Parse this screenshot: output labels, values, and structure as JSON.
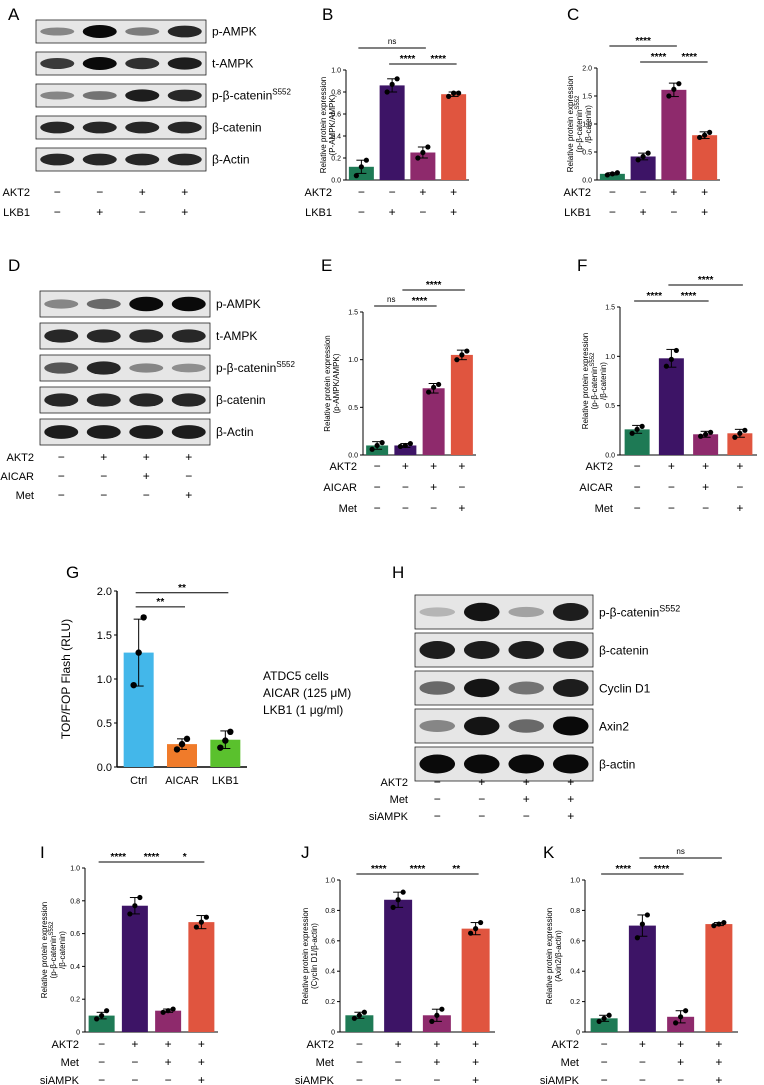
{
  "colors": {
    "green": "#1e7a55",
    "purple": "#3d1466",
    "magenta": "#8e2a6c",
    "red": "#e0553f",
    "g_blue": "#43b7ea",
    "g_orange": "#f07b2a",
    "g_green": "#5ac12d"
  },
  "panels": {
    "A": {
      "letter": "A",
      "blot_labels": [
        "p-AMPK",
        "t-AMPK",
        "p-β-catenin",
        "β-catenin",
        "β-Actin"
      ],
      "rows": [
        {
          "label": "AKT2",
          "signs": [
            "−",
            "−",
            "+",
            "+"
          ]
        },
        {
          "label": "LKB1",
          "signs": [
            "−",
            "+",
            "−",
            "+"
          ]
        }
      ]
    },
    "D": {
      "letter": "D",
      "blot_labels": [
        "p-AMPK",
        "t-AMPK",
        "p-β-catenin",
        "β-catenin",
        "β-Actin"
      ],
      "rows": [
        {
          "label": "AKT2",
          "signs": [
            "−",
            "+",
            "+",
            "+"
          ]
        },
        {
          "label": "AICAR",
          "signs": [
            "−",
            "−",
            "+",
            "−"
          ]
        },
        {
          "label": "Met",
          "signs": [
            "−",
            "−",
            "−",
            "+"
          ]
        }
      ]
    },
    "H": {
      "letter": "H",
      "blot_labels": [
        "p-β-catenin",
        "β-catenin",
        "Cyclin D1",
        "Axin2",
        "β-actin"
      ],
      "rows": [
        {
          "label": "AKT2",
          "signs": [
            "−",
            "+",
            "+",
            "+"
          ]
        },
        {
          "label": "Met",
          "signs": [
            "−",
            "−",
            "+",
            "+"
          ]
        },
        {
          "label": "siAMPK",
          "signs": [
            "−",
            "−",
            "−",
            "+"
          ]
        }
      ]
    },
    "G": {
      "letter": "G",
      "note_lines": [
        "ATDC5 cells",
        "AICAR (125 μM)",
        "LKB1 (1 μg/ml)"
      ]
    }
  },
  "superscript": "S552",
  "chart_data": [
    {
      "id": "B",
      "type": "bar",
      "letter": "B",
      "categories": [
        "1",
        "2",
        "3",
        "4"
      ],
      "values": [
        0.12,
        0.86,
        0.25,
        0.78
      ],
      "errors": [
        0.06,
        0.06,
        0.05,
        0.02
      ],
      "points": [
        [
          0.04,
          0.12,
          0.18
        ],
        [
          0.8,
          0.87,
          0.92
        ],
        [
          0.2,
          0.25,
          0.3
        ],
        [
          0.76,
          0.79,
          0.79
        ]
      ],
      "ylim": [
        0,
        1.0
      ],
      "yticks": [
        "0.0",
        "0.2",
        "0.4",
        "0.6",
        "0.8",
        "1.0"
      ],
      "ylabel_lines": [
        "Relative protein expression",
        "(P-AMPK/AMPK)"
      ],
      "rows": [
        {
          "label": "AKT2",
          "signs": [
            "−",
            "−",
            "+",
            "+"
          ]
        },
        {
          "label": "LKB1",
          "signs": [
            "−",
            "+",
            "−",
            "+"
          ]
        }
      ],
      "comparisons": [
        {
          "from": 0,
          "to": 2,
          "label": "ns"
        },
        {
          "from": 1,
          "to": 2,
          "label": "****"
        },
        {
          "from": 2,
          "to": 3,
          "label": "****"
        }
      ]
    },
    {
      "id": "C",
      "type": "bar",
      "letter": "C",
      "categories": [
        "1",
        "2",
        "3",
        "4"
      ],
      "values": [
        0.11,
        0.42,
        1.61,
        0.8
      ],
      "errors": [
        0.02,
        0.06,
        0.12,
        0.06
      ],
      "points": [
        [
          0.09,
          0.11,
          0.13
        ],
        [
          0.36,
          0.42,
          0.48
        ],
        [
          1.5,
          1.62,
          1.72
        ],
        [
          0.76,
          0.8,
          0.85
        ]
      ],
      "ylim": [
        0,
        2.0
      ],
      "yticks": [
        "0.0",
        "0.5",
        "1.0",
        "1.5",
        "2.0"
      ],
      "ylabel_lines": [
        "Relative protein expression",
        "(p-β-catenin",
        "/β-catenin)"
      ],
      "rows": [
        {
          "label": "AKT2",
          "signs": [
            "−",
            "−",
            "+",
            "+"
          ]
        },
        {
          "label": "LKB1",
          "signs": [
            "−",
            "+",
            "−",
            "+"
          ]
        }
      ],
      "comparisons": [
        {
          "from": 0,
          "to": 2,
          "label": "****"
        },
        {
          "from": 1,
          "to": 2,
          "label": "****"
        },
        {
          "from": 2,
          "to": 3,
          "label": "****"
        }
      ]
    },
    {
      "id": "E",
      "type": "bar",
      "letter": "E",
      "categories": [
        "1",
        "2",
        "3",
        "4"
      ],
      "values": [
        0.1,
        0.1,
        0.7,
        1.05
      ],
      "errors": [
        0.04,
        0.02,
        0.05,
        0.05
      ],
      "points": [
        [
          0.06,
          0.1,
          0.13
        ],
        [
          0.09,
          0.1,
          0.12
        ],
        [
          0.66,
          0.71,
          0.74
        ],
        [
          1.0,
          1.05,
          1.09
        ]
      ],
      "ylim": [
        0,
        1.5
      ],
      "yticks": [
        "0.0",
        "0.5",
        "1.0",
        "1.5"
      ],
      "ylabel_lines": [
        "Relative protein expression",
        "(p-AMPK/AMPK)"
      ],
      "rows": [
        {
          "label": "AKT2",
          "signs": [
            "−",
            "+",
            "+",
            "+"
          ]
        },
        {
          "label": "AICAR",
          "signs": [
            "−",
            "−",
            "+",
            "−"
          ]
        },
        {
          "label": "Met",
          "signs": [
            "−",
            "−",
            "−",
            "+"
          ]
        }
      ],
      "comparisons": [
        {
          "from": 0,
          "to": 1,
          "label": "ns"
        },
        {
          "from": 1,
          "to": 2,
          "label": "****"
        },
        {
          "from": 1,
          "to": 3,
          "label": "****"
        }
      ]
    },
    {
      "id": "F",
      "type": "bar",
      "letter": "F",
      "categories": [
        "1",
        "2",
        "3",
        "4"
      ],
      "values": [
        0.26,
        0.98,
        0.21,
        0.22
      ],
      "errors": [
        0.04,
        0.09,
        0.03,
        0.04
      ],
      "points": [
        [
          0.22,
          0.26,
          0.29
        ],
        [
          0.9,
          0.97,
          1.06
        ],
        [
          0.19,
          0.21,
          0.23
        ],
        [
          0.18,
          0.22,
          0.25
        ]
      ],
      "ylim": [
        0,
        1.5
      ],
      "yticks": [
        "0.0",
        "0.5",
        "1.0",
        "1.5"
      ],
      "ylabel_lines": [
        "Relative protein expression",
        "(p-β-catenin",
        "/β-catenin)"
      ],
      "rows": [
        {
          "label": "AKT2",
          "signs": [
            "−",
            "+",
            "+",
            "+"
          ]
        },
        {
          "label": "AICAR",
          "signs": [
            "−",
            "−",
            "+",
            "−"
          ]
        },
        {
          "label": "Met",
          "signs": [
            "−",
            "−",
            "−",
            "+"
          ]
        }
      ],
      "comparisons": [
        {
          "from": 0,
          "to": 1,
          "label": "****"
        },
        {
          "from": 1,
          "to": 2,
          "label": "****"
        },
        {
          "from": 1,
          "to": 3,
          "label": "****"
        }
      ]
    },
    {
      "id": "G",
      "type": "bar",
      "letter": "G",
      "categories": [
        "Ctrl",
        "AICAR",
        "LKB1"
      ],
      "values": [
        1.3,
        0.26,
        0.31
      ],
      "errors": [
        0.38,
        0.06,
        0.1
      ],
      "points": [
        [
          0.93,
          1.3,
          1.7
        ],
        [
          0.2,
          0.26,
          0.32
        ],
        [
          0.22,
          0.3,
          0.4
        ]
      ],
      "ylim": [
        0,
        2.0
      ],
      "yticks": [
        "0.0",
        "0.5",
        "1.0",
        "1.5",
        "2.0"
      ],
      "ylabel": "TOP/FOP Flash (RLU)",
      "comparisons": [
        {
          "from": 0,
          "to": 1,
          "label": "**"
        },
        {
          "from": 0,
          "to": 2,
          "label": "**"
        }
      ]
    },
    {
      "id": "I",
      "type": "bar",
      "letter": "I",
      "categories": [
        "1",
        "2",
        "3",
        "4"
      ],
      "values": [
        0.1,
        0.77,
        0.13,
        0.67
      ],
      "errors": [
        0.02,
        0.05,
        0.01,
        0.04
      ],
      "points": [
        [
          0.08,
          0.1,
          0.13
        ],
        [
          0.72,
          0.77,
          0.82
        ],
        [
          0.12,
          0.13,
          0.14
        ],
        [
          0.64,
          0.67,
          0.7
        ]
      ],
      "ylim": [
        0,
        1.0
      ],
      "yticks": [
        "0",
        "0.2",
        "0.4",
        "0.6",
        "0.8",
        "1.0"
      ],
      "ylabel_lines": [
        "Relative protein expression",
        "(p-β-catenin",
        "/β-catenin)"
      ],
      "rows": [
        {
          "label": "AKT2",
          "signs": [
            "−",
            "+",
            "+",
            "+"
          ]
        },
        {
          "label": "Met",
          "signs": [
            "−",
            "−",
            "+",
            "+"
          ]
        },
        {
          "label": "siAMPK",
          "signs": [
            "−",
            "−",
            "−",
            "+"
          ]
        }
      ],
      "comparisons": [
        {
          "from": 0,
          "to": 1,
          "label": "****"
        },
        {
          "from": 1,
          "to": 2,
          "label": "****"
        },
        {
          "from": 2,
          "to": 3,
          "label": "*"
        }
      ]
    },
    {
      "id": "J",
      "type": "bar",
      "letter": "J",
      "categories": [
        "1",
        "2",
        "3",
        "4"
      ],
      "values": [
        0.11,
        0.87,
        0.11,
        0.68
      ],
      "errors": [
        0.02,
        0.05,
        0.04,
        0.04
      ],
      "points": [
        [
          0.09,
          0.11,
          0.13
        ],
        [
          0.82,
          0.87,
          0.92
        ],
        [
          0.07,
          0.11,
          0.15
        ],
        [
          0.65,
          0.68,
          0.72
        ]
      ],
      "ylim": [
        0,
        1.0
      ],
      "yticks": [
        "0",
        "0.2",
        "0.4",
        "0.6",
        "0.8",
        "1.0"
      ],
      "ylabel_lines": [
        "Relative protein expression",
        "(Cyclin D1/β-actin)"
      ],
      "rows": [
        {
          "label": "AKT2",
          "signs": [
            "−",
            "+",
            "+",
            "+"
          ]
        },
        {
          "label": "Met",
          "signs": [
            "−",
            "−",
            "+",
            "+"
          ]
        },
        {
          "label": "siAMPK",
          "signs": [
            "−",
            "−",
            "−",
            "+"
          ]
        }
      ],
      "comparisons": [
        {
          "from": 0,
          "to": 1,
          "label": "****"
        },
        {
          "from": 1,
          "to": 2,
          "label": "****"
        },
        {
          "from": 2,
          "to": 3,
          "label": "**"
        }
      ]
    },
    {
      "id": "K",
      "type": "bar",
      "letter": "K",
      "categories": [
        "1",
        "2",
        "3",
        "4"
      ],
      "values": [
        0.09,
        0.7,
        0.1,
        0.71
      ],
      "errors": [
        0.02,
        0.07,
        0.04,
        0.01
      ],
      "points": [
        [
          0.07,
          0.09,
          0.11
        ],
        [
          0.62,
          0.71,
          0.77
        ],
        [
          0.06,
          0.1,
          0.14
        ],
        [
          0.7,
          0.71,
          0.72
        ]
      ],
      "ylim": [
        0,
        1.0
      ],
      "yticks": [
        "0",
        "0.2",
        "0.4",
        "0.6",
        "0.8",
        "1.0"
      ],
      "ylabel_lines": [
        "Relative protein expression",
        "(Axin2/β-actin)"
      ],
      "rows": [
        {
          "label": "AKT2",
          "signs": [
            "−",
            "+",
            "+",
            "+"
          ]
        },
        {
          "label": "Met",
          "signs": [
            "−",
            "−",
            "+",
            "+"
          ]
        },
        {
          "label": "siAMPK",
          "signs": [
            "−",
            "−",
            "−",
            "+"
          ]
        }
      ],
      "comparisons": [
        {
          "from": 0,
          "to": 1,
          "label": "****"
        },
        {
          "from": 1,
          "to": 2,
          "label": "****"
        },
        {
          "from": 1,
          "to": 3,
          "label": "ns"
        }
      ]
    }
  ]
}
